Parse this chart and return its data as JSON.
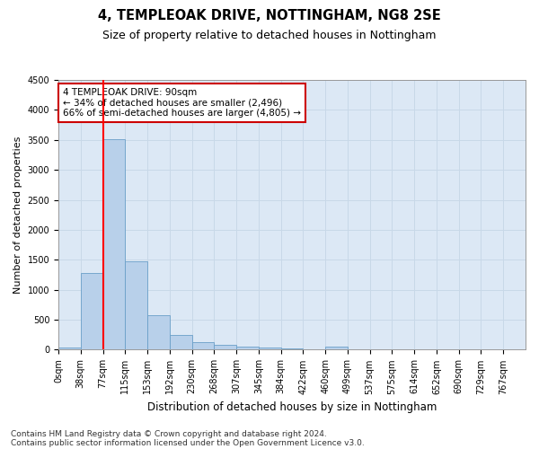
{
  "title1": "4, TEMPLEOAK DRIVE, NOTTINGHAM, NG8 2SE",
  "title2": "Size of property relative to detached houses in Nottingham",
  "xlabel": "Distribution of detached houses by size in Nottingham",
  "ylabel": "Number of detached properties",
  "bin_labels": [
    "0sqm",
    "38sqm",
    "77sqm",
    "115sqm",
    "153sqm",
    "192sqm",
    "230sqm",
    "268sqm",
    "307sqm",
    "345sqm",
    "384sqm",
    "422sqm",
    "460sqm",
    "499sqm",
    "537sqm",
    "575sqm",
    "614sqm",
    "652sqm",
    "690sqm",
    "729sqm",
    "767sqm"
  ],
  "bar_values": [
    40,
    1280,
    3510,
    1480,
    575,
    240,
    120,
    80,
    55,
    35,
    25,
    0,
    55,
    0,
    0,
    0,
    0,
    0,
    0,
    0,
    0
  ],
  "bar_color": "#b8d0ea",
  "bar_edge_color": "#6a9fc8",
  "grid_color": "#c8d8e8",
  "bg_color": "#dce8f5",
  "red_line_x": 2.0,
  "annotation_text": "4 TEMPLEOAK DRIVE: 90sqm\n← 34% of detached houses are smaller (2,496)\n66% of semi-detached houses are larger (4,805) →",
  "annotation_box_color": "#ffffff",
  "annotation_edge_color": "#cc0000",
  "ylim": [
    0,
    4500
  ],
  "yticks": [
    0,
    500,
    1000,
    1500,
    2000,
    2500,
    3000,
    3500,
    4000,
    4500
  ],
  "footer1": "Contains HM Land Registry data © Crown copyright and database right 2024.",
  "footer2": "Contains public sector information licensed under the Open Government Licence v3.0.",
  "title1_fontsize": 10.5,
  "title2_fontsize": 9,
  "xlabel_fontsize": 8.5,
  "ylabel_fontsize": 8,
  "tick_fontsize": 7,
  "annotation_fontsize": 7.5,
  "footer_fontsize": 6.5
}
